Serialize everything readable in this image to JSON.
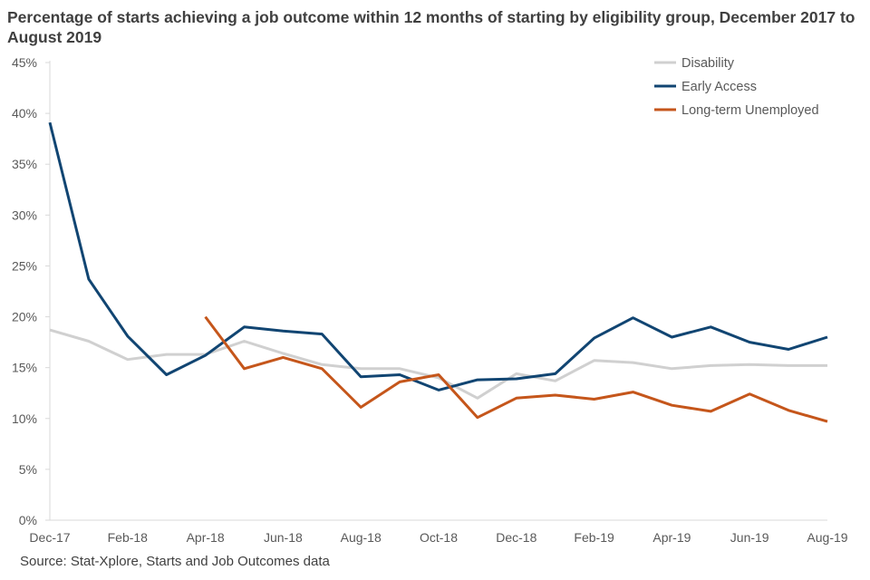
{
  "chart_data": {
    "type": "line",
    "title": "Percentage of starts achieving a job outcome within 12 months of starting by eligibility group, December 2017 to August 2019",
    "source": "Source: Stat-Xplore, Starts and Job Outcomes data",
    "xlabel": "",
    "ylabel": "",
    "ylim": [
      0,
      45
    ],
    "yticks": [
      "0%",
      "5%",
      "10%",
      "15%",
      "20%",
      "25%",
      "30%",
      "35%",
      "40%",
      "45%"
    ],
    "x": [
      "Dec-17",
      "Jan-18",
      "Feb-18",
      "Mar-18",
      "Apr-18",
      "May-18",
      "Jun-18",
      "Jul-18",
      "Aug-18",
      "Sep-18",
      "Oct-18",
      "Nov-18",
      "Dec-18",
      "Jan-19",
      "Feb-19",
      "Mar-19",
      "Apr-19",
      "May-19",
      "Jun-19",
      "Jul-19",
      "Aug-19"
    ],
    "xticks": [
      "Dec-17",
      "Feb-18",
      "Apr-18",
      "Jun-18",
      "Aug-18",
      "Oct-18",
      "Dec-18",
      "Feb-19",
      "Apr-19",
      "Jun-19",
      "Aug-19"
    ],
    "legend_position": "top-right",
    "series": [
      {
        "name": "Disability",
        "color": "#d0d0d0",
        "values": [
          18.7,
          17.6,
          15.8,
          16.3,
          16.3,
          17.6,
          16.4,
          15.3,
          14.9,
          14.9,
          14.0,
          12.0,
          14.4,
          13.7,
          15.7,
          15.5,
          14.9,
          15.2,
          15.3,
          15.2,
          15.2
        ]
      },
      {
        "name": "Early Access",
        "color": "#114572",
        "values": [
          39.1,
          23.7,
          18.1,
          14.3,
          16.2,
          19.0,
          18.6,
          18.3,
          14.1,
          14.3,
          12.8,
          13.8,
          13.9,
          14.4,
          17.9,
          19.9,
          18.0,
          19.0,
          17.5,
          16.8,
          18.0
        ]
      },
      {
        "name": "Long-term Unemployed",
        "color": "#c5561b",
        "values": [
          null,
          null,
          null,
          null,
          20.0,
          14.9,
          16.0,
          14.9,
          11.1,
          13.6,
          14.3,
          10.1,
          12.0,
          12.3,
          11.9,
          12.6,
          11.3,
          10.7,
          12.4,
          10.8,
          9.7
        ]
      }
    ]
  }
}
